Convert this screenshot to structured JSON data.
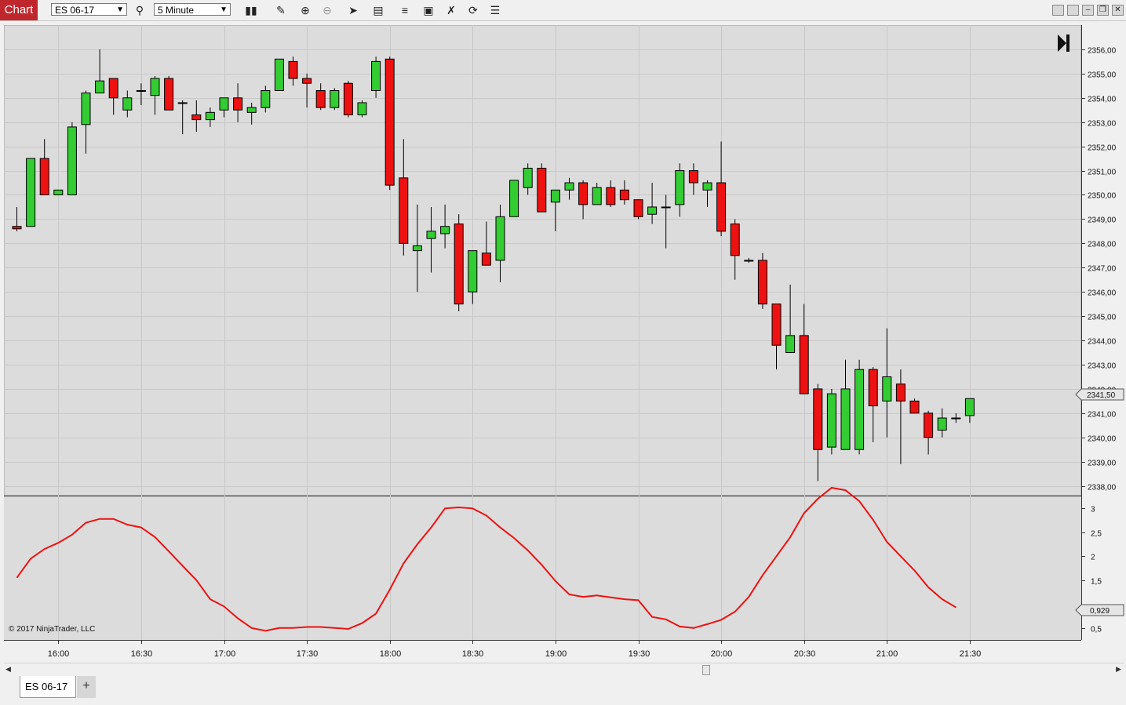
{
  "toolbar": {
    "chart_label": "Chart",
    "instrument": "ES 06-17",
    "interval": "5 Minute",
    "icons": [
      "search-icon",
      "bars-type-icon",
      "pencil-icon",
      "zoom-in-icon",
      "zoom-out-icon",
      "pointer-icon",
      "properties-icon",
      "strategies-icon",
      "drawing-objects-icon",
      "templates-icon",
      "reload-icon",
      "list-icon"
    ]
  },
  "window": {
    "buttons": [
      "group-icon",
      "group-icon",
      "minimize-icon",
      "restore-icon",
      "close-icon"
    ]
  },
  "chart": {
    "copyright": "© 2017 NinjaTrader, LLC",
    "up_color": "#33cc33",
    "down_color": "#ee1111",
    "indicator_color": "#ee1111",
    "background": "#dcdcdc",
    "price_ticks": [
      "2356,00",
      "2355,00",
      "2354,00",
      "2353,00",
      "2352,00",
      "2351,00",
      "2350,00",
      "2349,00",
      "2348,00",
      "2347,00",
      "2346,00",
      "2345,00",
      "2344,00",
      "2343,00",
      "2342,00",
      "2341,00",
      "2340,00",
      "2339,00",
      "2338,00"
    ],
    "price_marker": "2341,50",
    "indicator_ticks": [
      "3",
      "2,5",
      "2",
      "1,5",
      "0,5"
    ],
    "indicator_marker": "0,929",
    "time_ticks": [
      "16:00",
      "16:30",
      "17:00",
      "17:30",
      "18:00",
      "18:30",
      "19:00",
      "19:30",
      "20:00",
      "20:30",
      "21:00",
      "21:30"
    ]
  },
  "chart_data": {
    "type": "candlestick",
    "title": "",
    "instrument": "ES 06-17",
    "interval": "5 Minute",
    "ylim": [
      2337.6,
      2357
    ],
    "time_start": "15:45",
    "step_minutes": 5,
    "candles": [
      [
        2348.7,
        2349.5,
        2348.5,
        2348.6
      ],
      [
        2348.7,
        2351.5,
        2348.7,
        2351.5
      ],
      [
        2351.5,
        2352.3,
        2350.0,
        2350.0
      ],
      [
        2350.0,
        2350.2,
        2350.0,
        2350.2
      ],
      [
        2350.0,
        2353.0,
        2350.0,
        2352.8
      ],
      [
        2352.9,
        2354.3,
        2351.7,
        2354.2
      ],
      [
        2354.2,
        2356.0,
        2354.2,
        2354.7
      ],
      [
        2354.8,
        2354.8,
        2353.3,
        2354.0
      ],
      [
        2353.5,
        2354.3,
        2353.2,
        2354.0
      ],
      [
        2354.3,
        2354.6,
        2353.7,
        2354.3
      ],
      [
        2354.1,
        2354.9,
        2353.3,
        2354.8
      ],
      [
        2354.8,
        2354.9,
        2353.6,
        2353.5
      ],
      [
        2353.8,
        2353.9,
        2352.5,
        2353.8
      ],
      [
        2353.3,
        2353.9,
        2352.6,
        2353.1
      ],
      [
        2353.1,
        2353.6,
        2352.8,
        2353.4
      ],
      [
        2353.5,
        2354.0,
        2353.2,
        2354.0
      ],
      [
        2354.0,
        2354.6,
        2353.0,
        2353.5
      ],
      [
        2353.4,
        2353.8,
        2352.9,
        2353.6
      ],
      [
        2353.6,
        2354.5,
        2353.4,
        2354.3
      ],
      [
        2354.3,
        2355.6,
        2354.3,
        2355.6
      ],
      [
        2355.5,
        2355.7,
        2354.5,
        2354.8
      ],
      [
        2354.8,
        2355.0,
        2353.6,
        2354.6
      ],
      [
        2354.3,
        2354.6,
        2353.5,
        2353.6
      ],
      [
        2353.6,
        2354.4,
        2353.5,
        2354.3
      ],
      [
        2354.6,
        2354.7,
        2353.2,
        2353.3
      ],
      [
        2353.3,
        2353.9,
        2353.2,
        2353.8
      ],
      [
        2354.3,
        2355.7,
        2354.0,
        2355.5
      ],
      [
        2355.6,
        2355.7,
        2350.2,
        2350.4
      ],
      [
        2350.7,
        2352.3,
        2347.5,
        2348.0
      ],
      [
        2347.7,
        2349.6,
        2346.0,
        2347.9
      ],
      [
        2348.2,
        2349.5,
        2346.8,
        2348.5
      ],
      [
        2348.4,
        2349.6,
        2347.8,
        2348.7
      ],
      [
        2348.8,
        2349.2,
        2345.2,
        2345.5
      ],
      [
        2346.0,
        2347.7,
        2345.5,
        2347.7
      ],
      [
        2347.6,
        2348.9,
        2347.1,
        2347.1
      ],
      [
        2347.3,
        2349.6,
        2346.4,
        2349.1
      ],
      [
        2349.1,
        2350.6,
        2349.1,
        2350.6
      ],
      [
        2350.3,
        2351.3,
        2350.0,
        2351.1
      ],
      [
        2351.1,
        2351.3,
        2349.3,
        2349.3
      ],
      [
        2349.7,
        2350.1,
        2348.5,
        2350.2
      ],
      [
        2350.2,
        2350.7,
        2349.8,
        2350.5
      ],
      [
        2350.5,
        2350.6,
        2349.0,
        2349.6
      ],
      [
        2349.6,
        2350.5,
        2349.6,
        2350.3
      ],
      [
        2350.3,
        2350.6,
        2349.5,
        2349.6
      ],
      [
        2350.2,
        2350.6,
        2349.6,
        2349.8
      ],
      [
        2349.8,
        2349.8,
        2349.0,
        2349.1
      ],
      [
        2349.2,
        2350.5,
        2348.8,
        2349.5
      ],
      [
        2349.5,
        2350.0,
        2347.8,
        2349.5
      ],
      [
        2349.6,
        2351.3,
        2349.1,
        2351.0
      ],
      [
        2351.0,
        2351.3,
        2350.0,
        2350.5
      ],
      [
        2350.2,
        2350.6,
        2349.5,
        2350.5
      ],
      [
        2350.5,
        2352.2,
        2348.3,
        2348.5
      ],
      [
        2348.8,
        2349.0,
        2346.5,
        2347.5
      ],
      [
        2347.3,
        2347.4,
        2347.2,
        2347.3
      ],
      [
        2347.3,
        2347.6,
        2345.3,
        2345.5
      ],
      [
        2345.5,
        2345.5,
        2342.8,
        2343.8
      ],
      [
        2343.5,
        2346.3,
        2343.5,
        2344.2
      ],
      [
        2344.2,
        2345.5,
        2341.8,
        2341.8
      ],
      [
        2342.0,
        2342.2,
        2338.2,
        2339.5
      ],
      [
        2339.6,
        2342.0,
        2339.3,
        2341.8
      ],
      [
        2339.5,
        2343.2,
        2339.5,
        2342.0
      ],
      [
        2339.5,
        2343.2,
        2339.3,
        2342.8
      ],
      [
        2342.8,
        2342.9,
        2339.8,
        2341.3
      ],
      [
        2341.5,
        2344.5,
        2340.0,
        2342.5
      ],
      [
        2342.2,
        2342.8,
        2338.9,
        2341.5
      ],
      [
        2341.5,
        2341.6,
        2341.0,
        2341.0
      ],
      [
        2341.0,
        2341.1,
        2339.3,
        2340.0
      ],
      [
        2340.3,
        2341.2,
        2340.0,
        2340.8
      ],
      [
        2340.8,
        2341.0,
        2340.6,
        2340.8
      ],
      [
        2340.9,
        2341.6,
        2340.6,
        2341.6
      ]
    ],
    "indicator": {
      "ylim": [
        0.25,
        3.25
      ],
      "values": [
        1.55,
        1.95,
        2.15,
        2.28,
        2.45,
        2.7,
        2.78,
        2.78,
        2.66,
        2.6,
        2.4,
        2.1,
        1.8,
        1.5,
        1.1,
        0.95,
        0.7,
        0.5,
        0.44,
        0.5,
        0.5,
        0.52,
        0.52,
        0.5,
        0.48,
        0.6,
        0.8,
        1.3,
        1.85,
        2.25,
        2.6,
        3.0,
        3.02,
        3.0,
        2.85,
        2.6,
        2.38,
        2.12,
        1.82,
        1.48,
        1.2,
        1.15,
        1.18,
        1.14,
        1.1,
        1.08,
        0.73,
        0.68,
        0.53,
        0.5,
        0.58,
        0.67,
        0.84,
        1.15,
        1.6,
        2.0,
        2.4,
        2.9,
        3.2,
        3.43,
        3.38,
        3.15,
        2.76,
        2.3,
        2.0,
        1.7,
        1.35,
        1.1,
        0.93
      ]
    }
  },
  "tabs": {
    "instrument_tab": "ES 06-17",
    "add_tab": "+"
  }
}
